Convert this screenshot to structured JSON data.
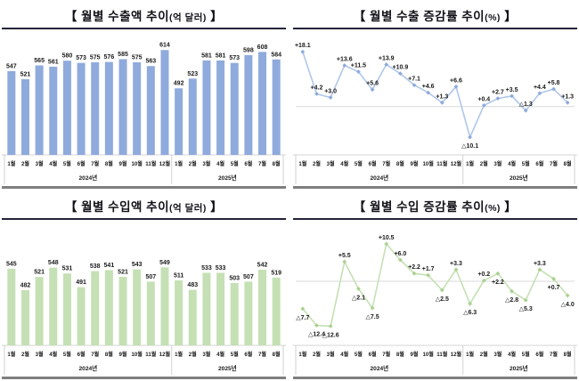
{
  "style": {
    "background": "#FFFFFF",
    "title_underline": "#23233A",
    "panel_bottom_bar": "#7F7F7F",
    "axis_line": "#C9C9C9",
    "group_separator": "#BFBFBF",
    "zero_line": "#D9D9D9",
    "label_text": "#1A1A1A"
  },
  "chart_data": [
    {
      "type": "bar",
      "title": "【 월별 수출액 추이(억 달러) 】",
      "title_main": "【 월별 수출액 추이",
      "title_unit": "(억 달러)",
      "title_close": " 】",
      "xlabel": "",
      "ylabel": "억 달러",
      "categories": [
        "1월",
        "2월",
        "3월",
        "4월",
        "5월",
        "6월",
        "7월",
        "8월",
        "9월",
        "10월",
        "11월",
        "12월",
        "1월",
        "2월",
        "3월",
        "4월",
        "5월",
        "6월",
        "7월",
        "8월"
      ],
      "year_groups": [
        {
          "label": "2024년",
          "months": 12
        },
        {
          "label": "2025년",
          "months": 8
        }
      ],
      "values": [
        547,
        521,
        565,
        561,
        580,
        573,
        575,
        576,
        585,
        575,
        563,
        614,
        492,
        523,
        581,
        581,
        573,
        598,
        608,
        584
      ],
      "bar_color": "#8FAADC",
      "ylim": [
        280,
        660
      ],
      "grid": false,
      "legend": "none"
    },
    {
      "type": "line",
      "title": "【 월별 수출 증감률 추이(%) 】",
      "title_main": "【 월별 수출 증감률 추이",
      "title_unit": "(%)",
      "title_close": " 】",
      "xlabel": "",
      "ylabel": "%",
      "categories": [
        "1월",
        "2월",
        "3월",
        "4월",
        "5월",
        "6월",
        "7월",
        "8월",
        "9월",
        "10월",
        "11월",
        "12월",
        "1월",
        "2월",
        "3월",
        "4월",
        "5월",
        "6월",
        "7월",
        "8월"
      ],
      "year_groups": [
        {
          "label": "2024년",
          "months": 12
        },
        {
          "label": "2025년",
          "months": 8
        }
      ],
      "values": [
        18.1,
        4.2,
        3.0,
        13.6,
        11.5,
        5.6,
        13.9,
        10.9,
        7.1,
        4.6,
        1.3,
        6.6,
        -10.1,
        0.4,
        2.7,
        3.5,
        -1.3,
        4.4,
        5.8,
        1.3
      ],
      "value_labels": [
        "+18.1",
        "+4.2",
        "+3.0",
        "+13.6",
        "+11.5",
        "+5.6",
        "+13.9",
        "+10.9",
        "+7.1",
        "+4.6",
        "+1.3",
        "+6.6",
        "△10.1",
        "+0.4",
        "+2.7",
        "+3.5",
        "△1.3",
        "+4.4",
        "+5.8",
        "+1.3"
      ],
      "label_side": [
        "up",
        "up",
        "up",
        "up",
        "up",
        "up",
        "up",
        "up",
        "up",
        "up",
        "up",
        "up",
        "down",
        "up",
        "up",
        "up",
        "up",
        "up",
        "up",
        "up"
      ],
      "line_color": "#AFC7E8",
      "marker_color": "#8FAADC",
      "ylim": [
        -13,
        20.5
      ],
      "grid": false,
      "legend": "none"
    },
    {
      "type": "bar",
      "title": "【 월별 수입액 추이(억 달러) 】",
      "title_main": "【 월별 수입액 추이",
      "title_unit": "(억 달러)",
      "title_close": " 】",
      "xlabel": "",
      "ylabel": "억 달러",
      "categories": [
        "1월",
        "2월",
        "3월",
        "4월",
        "5월",
        "6월",
        "7월",
        "8월",
        "9월",
        "10월",
        "11월",
        "12월",
        "1월",
        "2월",
        "3월",
        "4월",
        "5월",
        "6월",
        "7월",
        "8월"
      ],
      "year_groups": [
        {
          "label": "2024년",
          "months": 12
        },
        {
          "label": "2025년",
          "months": 8
        }
      ],
      "values": [
        545,
        482,
        521,
        548,
        531,
        491,
        538,
        541,
        521,
        543,
        507,
        549,
        511,
        483,
        533,
        533,
        503,
        507,
        542,
        519
      ],
      "bar_color": "#C5E0B4",
      "ylim": [
        320,
        670
      ],
      "grid": false,
      "legend": "none"
    },
    {
      "type": "line",
      "title": "【 월별 수입 증감률 추이(%) 】",
      "title_main": "【 월별 수입 증감률 추이",
      "title_unit": "(%)",
      "title_close": " 】",
      "xlabel": "",
      "ylabel": "%",
      "categories": [
        "1월",
        "2월",
        "3월",
        "4월",
        "5월",
        "6월",
        "7월",
        "8월",
        "9월",
        "10월",
        "11월",
        "12월",
        "1월",
        "2월",
        "3월",
        "4월",
        "5월",
        "6월",
        "7월",
        "8월"
      ],
      "year_groups": [
        {
          "label": "2024년",
          "months": 12
        },
        {
          "label": "2025년",
          "months": 8
        }
      ],
      "values": [
        -7.7,
        -12.4,
        -12.6,
        5.5,
        -2.1,
        -7.5,
        10.5,
        6.0,
        2.2,
        1.7,
        -2.5,
        3.3,
        -6.3,
        0.2,
        2.2,
        -2.8,
        -5.3,
        3.3,
        0.7,
        -4.0
      ],
      "value_labels": [
        "△7.7",
        "△12.4",
        "△12.6",
        "+5.5",
        "△2.1",
        "△7.5",
        "+10.5",
        "+6.0",
        "+2.2",
        "+1.7",
        "△2.5",
        "+3.3",
        "△6.3",
        "+0.2",
        "+2.2",
        "△2.8",
        "△5.3",
        "+3.3",
        "+0.7",
        "△4.0"
      ],
      "label_side": [
        "down",
        "down",
        "down",
        "up",
        "down",
        "down",
        "up",
        "up",
        "up",
        "up",
        "down",
        "up",
        "down",
        "up",
        "down",
        "down",
        "down",
        "up",
        "down",
        "down"
      ],
      "line_color": "#C5E0B4",
      "marker_color": "#A9D18E",
      "ylim": [
        -15.5,
        13
      ],
      "grid": false,
      "legend": "none"
    }
  ]
}
